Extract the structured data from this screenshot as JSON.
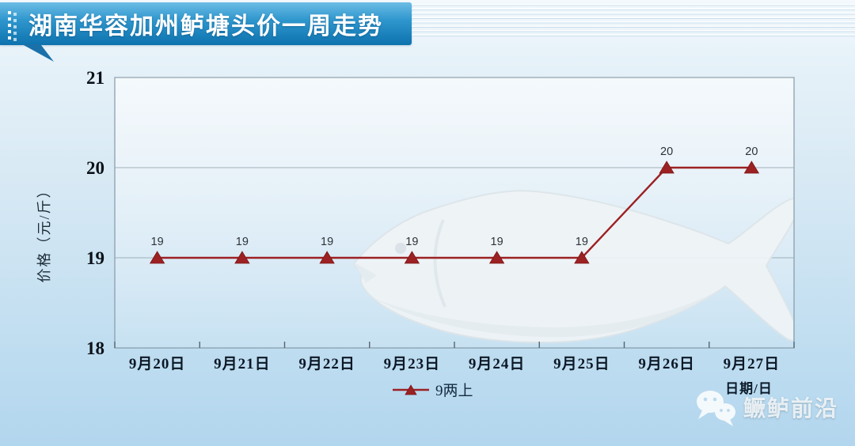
{
  "banner": {
    "title": "湖南华容加州鲈塘头价一周走势"
  },
  "watermark": {
    "brand": "鳜鲈前沿",
    "icon": "wechat-logo"
  },
  "decorations": {
    "plot_background_image": "pale-white-bass-fish-photo"
  },
  "colors": {
    "series_red": "#9c2123",
    "banner_blue_top": "#6bbce5",
    "banner_blue_bottom": "#0d72ae",
    "page_bg_top": "#f3f9fd",
    "page_bg_bottom": "#b2d6ee",
    "grid_gray": "#90a2ad"
  },
  "chart_data": {
    "type": "line",
    "title": "湖南华容加州鲈塘头价一周走势",
    "categories": [
      "9月20日",
      "9月21日",
      "9月22日",
      "9月23日",
      "9月24日",
      "9月25日",
      "9月26日",
      "9月27日"
    ],
    "series": [
      {
        "name": "9两上",
        "values": [
          19,
          19,
          19,
          19,
          19,
          19,
          20,
          20
        ],
        "color": "#9c2123",
        "marker": "triangle"
      }
    ],
    "data_labels": [
      19,
      19,
      19,
      19,
      19,
      19,
      20,
      20
    ],
    "show_data_labels": true,
    "ylabel": "价格（元/斤）",
    "xlabel": "日期/日",
    "ylim": [
      18,
      21
    ],
    "yticks": [
      18,
      19,
      20,
      21
    ],
    "grid": "horizontal",
    "legend_position": "bottom-center"
  }
}
